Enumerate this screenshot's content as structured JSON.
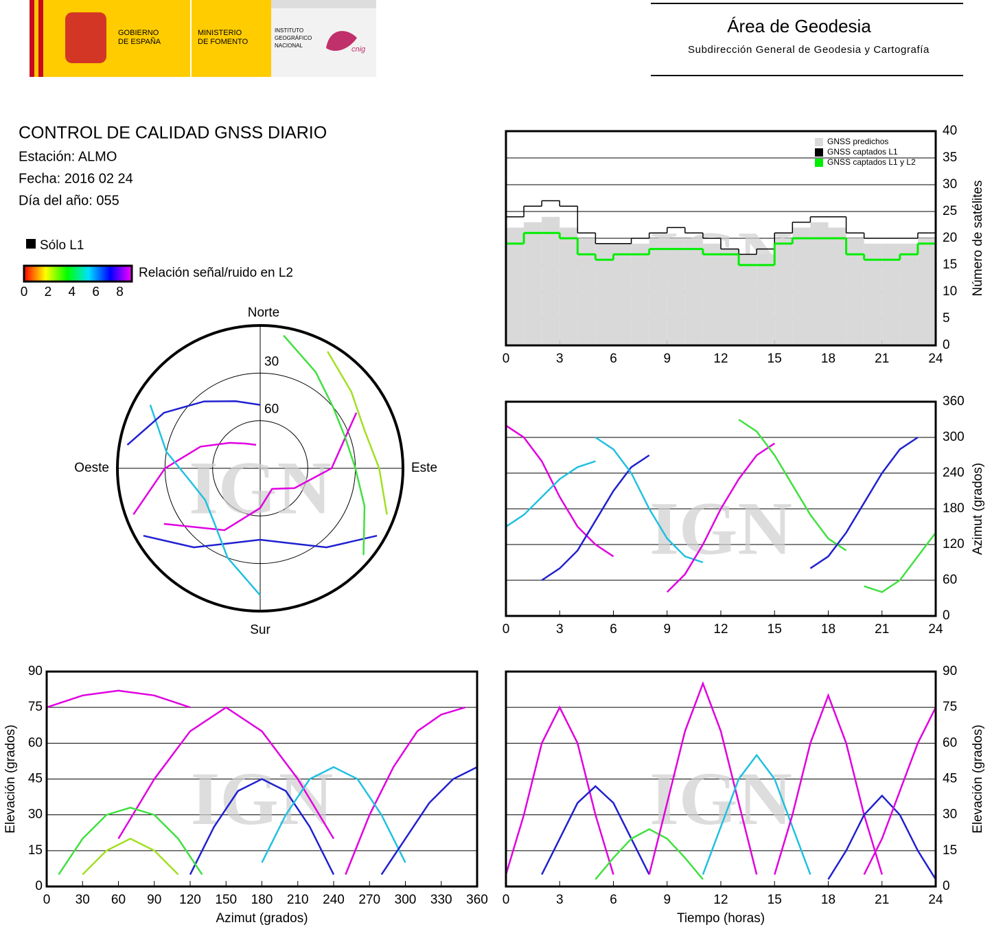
{
  "header": {
    "gobierno": [
      "GOBIERNO",
      "DE ESPAÑA"
    ],
    "ministerio": [
      "MINISTERIO",
      "DE FOMENTO"
    ],
    "instituto": [
      "INSTITUTO",
      "GEOGRÁFICO",
      "NACIONAL"
    ],
    "cnig": "cnig",
    "area": "Área de Geodesia",
    "subarea": "Subdirección General de Geodesia y Cartografía"
  },
  "info": {
    "title": "CONTROL DE CALIDAD GNSS DIARIO",
    "station": "Estación: ALMO",
    "date": "Fecha: 2016 02 24",
    "doy": "Día del año: 055"
  },
  "legend": {
    "l1_only": "Sólo L1",
    "snr_label": "Relación señal/ruido en L2",
    "snr_lim": [
      0,
      9
    ],
    "snr_ticks": [
      0,
      2,
      4,
      6,
      8
    ],
    "snr_colors": [
      "#ff0000",
      "#ffff00",
      "#00ff00",
      "#00e0ff",
      "#0000ff",
      "#ff00ff"
    ]
  },
  "watermark": "IGN",
  "chart_data": [
    {
      "type": "line",
      "step": true,
      "legend": "upper right",
      "y_axis_side": "right",
      "grid": "y",
      "ylabel": "Número de satélites",
      "xlim": [
        0,
        24
      ],
      "xticks": [
        0,
        3,
        6,
        9,
        12,
        15,
        18,
        21,
        24
      ],
      "ylim": [
        0,
        40
      ],
      "yticks": [
        0,
        5,
        10,
        15,
        20,
        25,
        30,
        35,
        40
      ],
      "x": [
        0,
        1,
        2,
        3,
        4,
        5,
        6,
        7,
        8,
        9,
        10,
        11,
        12,
        13,
        14,
        15,
        16,
        17,
        18,
        19,
        20,
        21,
        22,
        23,
        24
      ],
      "series": [
        {
          "name": "GNSS predichos",
          "color": "#d9d9d9",
          "fill": true,
          "values": [
            22,
            23,
            24,
            22,
            20,
            19,
            19,
            19,
            20,
            20,
            20,
            19,
            18,
            17,
            17,
            20,
            22,
            23,
            22,
            20,
            19,
            19,
            19,
            20,
            20
          ]
        },
        {
          "name": "GNSS captados L1",
          "color": "#000000",
          "values": [
            24,
            26,
            27,
            26,
            21,
            19,
            19,
            20,
            21,
            22,
            21,
            20,
            18,
            17,
            18,
            21,
            23,
            24,
            24,
            21,
            20,
            20,
            20,
            21,
            22
          ]
        },
        {
          "name": "GNSS captados L1 y L2",
          "color": "#00ee00",
          "values": [
            19,
            21,
            21,
            20,
            17,
            16,
            17,
            17,
            18,
            18,
            18,
            17,
            17,
            15,
            15,
            19,
            20,
            20,
            20,
            17,
            16,
            16,
            17,
            19,
            19
          ]
        }
      ]
    },
    {
      "type": "line",
      "y_axis_side": "right",
      "grid": "y",
      "ylabel": "Azimut (grados)",
      "xlim": [
        0,
        24
      ],
      "xticks": [
        0,
        3,
        6,
        9,
        12,
        15,
        18,
        21,
        24
      ],
      "ylim": [
        0,
        360
      ],
      "yticks": [
        0,
        60,
        120,
        180,
        240,
        300,
        360
      ],
      "series": [
        {
          "color": "#e000e0",
          "x": [
            0,
            1,
            2,
            3,
            4,
            5,
            6
          ],
          "values": [
            320,
            300,
            260,
            200,
            150,
            120,
            100
          ]
        },
        {
          "color": "#2020d0",
          "x": [
            2,
            3,
            4,
            5,
            6,
            7,
            8
          ],
          "values": [
            60,
            80,
            110,
            160,
            210,
            250,
            270
          ]
        },
        {
          "color": "#20c0e0",
          "x": [
            5,
            6,
            7,
            8,
            9,
            10,
            11
          ],
          "values": [
            300,
            280,
            240,
            180,
            130,
            100,
            90
          ]
        },
        {
          "color": "#e000e0",
          "x": [
            9,
            10,
            11,
            12,
            13,
            14,
            15
          ],
          "values": [
            40,
            70,
            120,
            180,
            230,
            270,
            290
          ]
        },
        {
          "color": "#40e040",
          "x": [
            13,
            14,
            15,
            16,
            17,
            18,
            19
          ],
          "values": [
            330,
            310,
            270,
            220,
            170,
            130,
            110
          ]
        },
        {
          "color": "#2020d0",
          "x": [
            17,
            18,
            19,
            20,
            21,
            22,
            23
          ],
          "values": [
            80,
            100,
            140,
            190,
            240,
            280,
            300
          ]
        },
        {
          "color": "#20c0e0",
          "x": [
            0,
            1,
            2,
            3,
            4,
            5
          ],
          "values": [
            150,
            170,
            200,
            230,
            250,
            260
          ]
        },
        {
          "color": "#40e040",
          "x": [
            20,
            21,
            22,
            23,
            24
          ],
          "values": [
            50,
            40,
            60,
            100,
            140
          ]
        }
      ]
    },
    {
      "type": "polar",
      "directions": {
        "north": "Norte",
        "south": "Sur",
        "east": "Este",
        "west": "Oeste"
      },
      "rticks": [
        30,
        60
      ],
      "series": [
        {
          "color": "#e000e0",
          "x": [
            60,
            90,
            120,
            150,
            180,
            210,
            240
          ],
          "values": [
            20,
            45,
            65,
            75,
            65,
            45,
            20
          ]
        },
        {
          "color": "#2020d0",
          "x": [
            120,
            140,
            160,
            180,
            200,
            220,
            240
          ],
          "values": [
            5,
            25,
            40,
            45,
            40,
            25,
            5
          ]
        },
        {
          "color": "#40e040",
          "x": [
            10,
            30,
            50,
            70,
            90,
            110,
            130
          ],
          "values": [
            5,
            20,
            30,
            33,
            30,
            20,
            5
          ]
        },
        {
          "color": "#e000e0",
          "x": [
            250,
            270,
            290,
            310,
            330,
            350
          ],
          "values": [
            5,
            30,
            50,
            65,
            72,
            75
          ]
        },
        {
          "color": "#20c0e0",
          "x": [
            180,
            200,
            220,
            240,
            260,
            280,
            300
          ],
          "values": [
            10,
            30,
            45,
            50,
            45,
            30,
            10
          ]
        },
        {
          "color": "#2020d0",
          "x": [
            280,
            300,
            320,
            340,
            360
          ],
          "values": [
            5,
            20,
            35,
            45,
            50
          ]
        },
        {
          "color": "#a0e020",
          "x": [
            30,
            50,
            70,
            90,
            110
          ],
          "values": [
            5,
            15,
            20,
            15,
            5
          ]
        }
      ]
    },
    {
      "type": "line",
      "y_axis_side": "left",
      "grid": "y",
      "xlabel": "Azimut (grados)",
      "ylabel": "Elevación (grados)",
      "xlim": [
        0,
        360
      ],
      "xticks": [
        0,
        30,
        60,
        90,
        120,
        150,
        180,
        210,
        240,
        270,
        300,
        330,
        360
      ],
      "ylim": [
        0,
        90
      ],
      "yticks": [
        0,
        15,
        30,
        45,
        60,
        75,
        90
      ],
      "series": [
        {
          "color": "#e000e0",
          "x": [
            60,
            90,
            120,
            150,
            180,
            210,
            240
          ],
          "values": [
            20,
            45,
            65,
            75,
            65,
            45,
            20
          ]
        },
        {
          "color": "#2020d0",
          "x": [
            120,
            140,
            160,
            180,
            200,
            220,
            240
          ],
          "values": [
            5,
            25,
            40,
            45,
            40,
            25,
            5
          ]
        },
        {
          "color": "#40e040",
          "x": [
            10,
            30,
            50,
            70,
            90,
            110,
            130
          ],
          "values": [
            5,
            20,
            30,
            33,
            30,
            20,
            5
          ]
        },
        {
          "color": "#e000e0",
          "x": [
            250,
            270,
            290,
            310,
            330,
            350
          ],
          "values": [
            5,
            30,
            50,
            65,
            72,
            75
          ]
        },
        {
          "color": "#20c0e0",
          "x": [
            180,
            200,
            220,
            240,
            260,
            280,
            300
          ],
          "values": [
            10,
            30,
            45,
            50,
            45,
            30,
            10
          ]
        },
        {
          "color": "#e000e0",
          "x": [
            0,
            30,
            60,
            90,
            120
          ],
          "values": [
            75,
            80,
            82,
            80,
            75
          ]
        },
        {
          "color": "#2020d0",
          "x": [
            280,
            300,
            320,
            340,
            360
          ],
          "values": [
            5,
            20,
            35,
            45,
            50
          ]
        },
        {
          "color": "#a0e020",
          "x": [
            30,
            50,
            70,
            90,
            110
          ],
          "values": [
            5,
            15,
            20,
            15,
            5
          ]
        }
      ]
    },
    {
      "type": "line",
      "y_axis_side": "right",
      "grid": "y",
      "xlabel": "Tiempo (horas)",
      "ylabel": "Elevación (grados)",
      "xlim": [
        0,
        24
      ],
      "xticks": [
        0,
        3,
        6,
        9,
        12,
        15,
        18,
        21,
        24
      ],
      "ylim": [
        0,
        90
      ],
      "yticks": [
        0,
        15,
        30,
        45,
        60,
        75,
        90
      ],
      "series": [
        {
          "color": "#e000e0",
          "x": [
            0,
            1,
            2,
            3,
            4,
            5,
            6
          ],
          "values": [
            5,
            30,
            60,
            75,
            60,
            30,
            5
          ]
        },
        {
          "color": "#2020d0",
          "x": [
            2,
            3,
            4,
            5,
            6,
            7,
            8
          ],
          "values": [
            5,
            20,
            35,
            42,
            35,
            20,
            5
          ]
        },
        {
          "color": "#40e040",
          "x": [
            5,
            6,
            7,
            8,
            9,
            10,
            11
          ],
          "values": [
            3,
            12,
            20,
            24,
            20,
            12,
            3
          ]
        },
        {
          "color": "#e000e0",
          "x": [
            8,
            9,
            10,
            11,
            12,
            13,
            14
          ],
          "values": [
            5,
            35,
            65,
            85,
            65,
            35,
            5
          ]
        },
        {
          "color": "#20c0e0",
          "x": [
            11,
            12,
            13,
            14,
            15,
            16,
            17
          ],
          "values": [
            5,
            25,
            45,
            55,
            45,
            25,
            5
          ]
        },
        {
          "color": "#e000e0",
          "x": [
            15,
            16,
            17,
            18,
            19,
            20,
            21
          ],
          "values": [
            5,
            30,
            60,
            80,
            60,
            30,
            5
          ]
        },
        {
          "color": "#2020d0",
          "x": [
            18,
            19,
            20,
            21,
            22,
            23,
            24
          ],
          "values": [
            3,
            15,
            30,
            38,
            30,
            15,
            3
          ]
        },
        {
          "color": "#e000e0",
          "x": [
            20,
            21,
            22,
            23,
            24
          ],
          "values": [
            5,
            20,
            40,
            60,
            75
          ]
        }
      ]
    }
  ]
}
